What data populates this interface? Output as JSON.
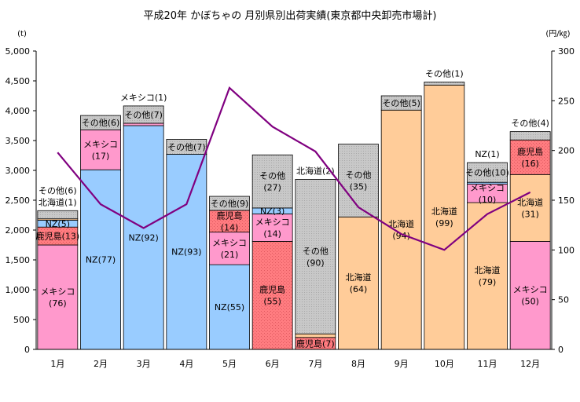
{
  "chart_data": {
    "type": "bar",
    "stacked": true,
    "title": "平成20年 かぼちゃの 月別県別出荷実績(東京都中央卸売市場計)",
    "y_left_unit": "(t)",
    "y_right_unit": "(円/㎏)",
    "ylim_left": [
      0,
      5000
    ],
    "ylim_right": [
      0,
      300
    ],
    "y_left_ticks": [
      "0",
      "500",
      "1,000",
      "1,500",
      "2,000",
      "2,500",
      "3,000",
      "3,500",
      "4,000",
      "4,500",
      "5,000"
    ],
    "y_right_ticks": [
      "0",
      "50",
      "100",
      "150",
      "200",
      "250",
      "300"
    ],
    "categories": [
      "1月",
      "2月",
      "3月",
      "4月",
      "5月",
      "6月",
      "7月",
      "8月",
      "9月",
      "10月",
      "11月",
      "12月"
    ],
    "colors": {
      "mexico": "#ff99cc",
      "nz": "#99ccff",
      "kagoshima": "#ff7c80",
      "hokkaido": "#ffcc99",
      "other": "#c0c0c0",
      "price_line": "#800080"
    },
    "bars": [
      {
        "segments": [
          {
            "key": "mexico",
            "value": 1750,
            "label": "メキシコ\n(76)"
          },
          {
            "key": "kagoshima",
            "value": 300,
            "label": "鹿児島(13)"
          },
          {
            "key": "nz",
            "value": 115,
            "label": "NZ(5)"
          },
          {
            "key": "hokkaido",
            "value": 23,
            "label": "北海道(1)",
            "outside": true
          },
          {
            "key": "other",
            "value": 137,
            "label": "その他(6)",
            "outside": true
          }
        ]
      },
      {
        "segments": [
          {
            "key": "nz",
            "value": 3010,
            "label": "NZ(77)"
          },
          {
            "key": "mexico",
            "value": 670,
            "label": "メキシコ\n(17)"
          },
          {
            "key": "other",
            "value": 240,
            "label": "その他(6)"
          }
        ]
      },
      {
        "segments": [
          {
            "key": "nz",
            "value": 3750,
            "label": "NZ(92)"
          },
          {
            "key": "mexico",
            "value": 40,
            "label": "メキシコ(1)",
            "outside": true
          },
          {
            "key": "other",
            "value": 290,
            "label": "その他(7)"
          }
        ]
      },
      {
        "segments": [
          {
            "key": "nz",
            "value": 3270,
            "label": "NZ(93)"
          },
          {
            "key": "other",
            "value": 250,
            "label": "その他(7)"
          }
        ]
      },
      {
        "segments": [
          {
            "key": "nz",
            "value": 1420,
            "label": "NZ(55)"
          },
          {
            "key": "mexico",
            "value": 545,
            "label": "メキシコ\n(21)"
          },
          {
            "key": "kagoshima",
            "value": 365,
            "label": "鹿児島\n(14)"
          },
          {
            "key": "other",
            "value": 235,
            "label": "その他(9)"
          }
        ]
      },
      {
        "segments": [
          {
            "key": "kagoshima",
            "value": 1810,
            "label": "鹿児島\n(55)"
          },
          {
            "key": "mexico",
            "value": 460,
            "label": "メキシコ\n(14)"
          },
          {
            "key": "nz",
            "value": 100,
            "label": "NZ(3)"
          },
          {
            "key": "other",
            "value": 890,
            "label": "その他\n(27)"
          }
        ]
      },
      {
        "segments": [
          {
            "key": "kagoshima",
            "value": 200,
            "label": "鹿児島(7)"
          },
          {
            "key": "hokkaido",
            "value": 60,
            "label": "北海道(2)",
            "outside": true
          },
          {
            "key": "other",
            "value": 2590,
            "label": "その他\n(90)"
          }
        ]
      },
      {
        "segments": [
          {
            "key": "hokkaido",
            "value": 2220,
            "label": "北海道\n(64)"
          },
          {
            "key": "other",
            "value": 1220,
            "label": "その他\n(35)"
          }
        ]
      },
      {
        "segments": [
          {
            "key": "hokkaido",
            "value": 4010,
            "label": "北海道\n(94)"
          },
          {
            "key": "other",
            "value": 240,
            "label": "その他(5)"
          }
        ]
      },
      {
        "segments": [
          {
            "key": "hokkaido",
            "value": 4430,
            "label": "北海道\n(99)"
          },
          {
            "key": "other",
            "value": 50,
            "label": "その他(1)",
            "outside": true
          }
        ]
      },
      {
        "segments": [
          {
            "key": "hokkaido",
            "value": 2460,
            "label": "北海道\n(79)"
          },
          {
            "key": "mexico",
            "value": 310,
            "label": "メキシコ\n(10)"
          },
          {
            "key": "nz",
            "value": 30,
            "label": "NZ(1)",
            "outside": true
          },
          {
            "key": "other",
            "value": 330,
            "label": "その他(10)"
          }
        ]
      },
      {
        "segments": [
          {
            "key": "mexico",
            "value": 1810,
            "label": "メキシコ\n(50)"
          },
          {
            "key": "hokkaido",
            "value": 1120,
            "label": "北海道\n(31)"
          },
          {
            "key": "kagoshima",
            "value": 580,
            "label": "鹿児島\n(16)"
          },
          {
            "key": "other",
            "value": 140,
            "label": "その他(4)",
            "outside": true
          }
        ]
      }
    ],
    "price_series": {
      "name": "単価(円/㎏)",
      "values": [
        198,
        146,
        122,
        146,
        263,
        224,
        199,
        143,
        116,
        100,
        136,
        158
      ]
    }
  }
}
